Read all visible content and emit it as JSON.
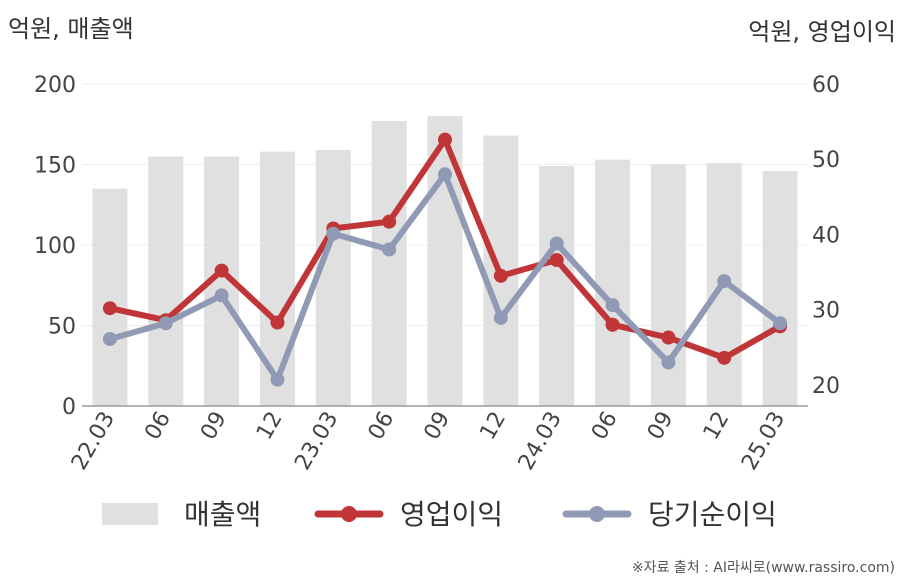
{
  "chart_data": {
    "type": "bar",
    "categories": [
      "22.03",
      "06",
      "09",
      "12",
      "23.03",
      "06",
      "09",
      "12",
      "24.03",
      "06",
      "09",
      "12",
      "25.03"
    ],
    "left_axis_label": "억원, 매출액",
    "right_axis_label": "억원, 영업이익",
    "left_ylim": [
      0,
      200
    ],
    "left_ticks": [
      "0",
      "50",
      "100",
      "150",
      "200"
    ],
    "right_ylim": [
      17.2,
      60
    ],
    "right_ticks": [
      "20",
      "30",
      "40",
      "50",
      "60"
    ],
    "grid": true,
    "legend_position": "bottom",
    "series": [
      {
        "name": "매출액",
        "kind": "bar",
        "axis": "left",
        "color": "#e0e0e0",
        "values": [
          135,
          155,
          155,
          158,
          159,
          177,
          180,
          168,
          149,
          153,
          150,
          151,
          146
        ]
      },
      {
        "name": "영업이익",
        "kind": "line",
        "axis": "right",
        "color": "#c03538",
        "values": [
          30.2,
          28.6,
          35.2,
          28.3,
          40.8,
          41.7,
          52.6,
          34.5,
          36.6,
          28.0,
          26.3,
          23.6,
          27.8
        ]
      },
      {
        "name": "당기순이익",
        "kind": "line",
        "axis": "right",
        "color": "#909ab5",
        "values": [
          26.1,
          28.2,
          31.9,
          20.7,
          40.1,
          38.0,
          48.0,
          28.9,
          38.8,
          30.6,
          23.0,
          33.8,
          28.2
        ]
      }
    ],
    "source": "※자료 출처 : AI라씨로(www.rassiro.com)"
  }
}
